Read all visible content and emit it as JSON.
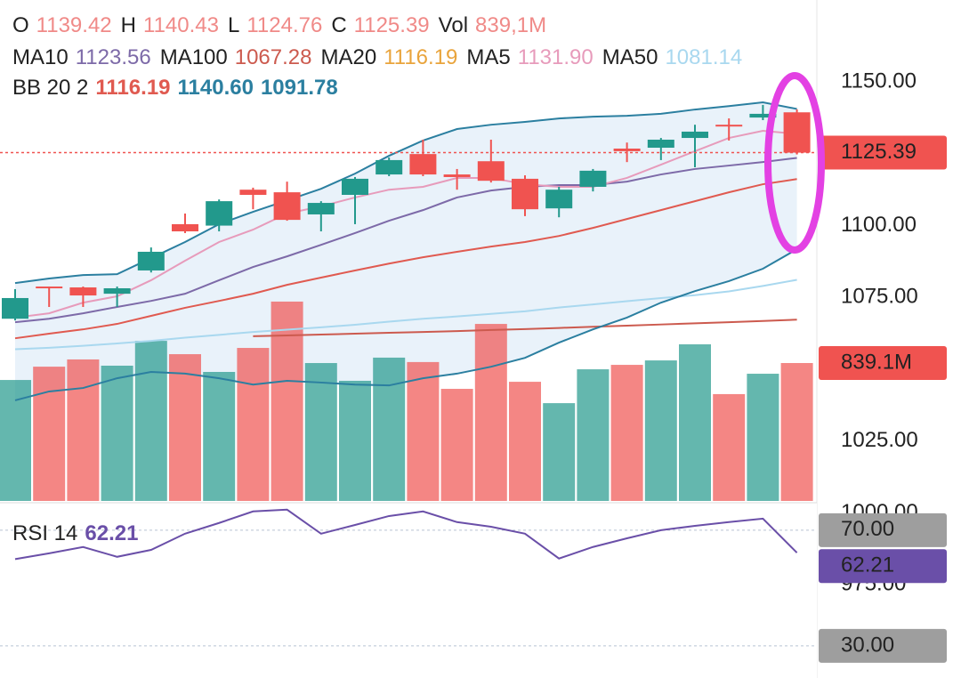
{
  "chart_data": {
    "type": "candlestick",
    "header_labels": [
      "O",
      "H",
      "L",
      "C",
      "Vol"
    ],
    "up_color": "#22998c",
    "down_color": "#f05350",
    "candles": {
      "open": [
        1067.6,
        1078.8,
        1078.5,
        1076.3,
        1084.4,
        1100.5,
        1100.0,
        1112.5,
        1111.6,
        1103.9,
        1110.7,
        1117.8,
        1124.9,
        1117.8,
        1122.4,
        1116.3,
        1106.0,
        1113.5,
        1126.8,
        1127.1,
        1130.5,
        1135.1,
        1137.6,
        1139.42
      ],
      "high": [
        1077.9,
        1078.8,
        1078.8,
        1078.8,
        1092.4,
        1104.2,
        1109.1,
        1113.2,
        1115.3,
        1108.5,
        1116.9,
        1123.7,
        1129.9,
        1119.7,
        1129.9,
        1117.5,
        1113.5,
        1119.7,
        1128.9,
        1130.5,
        1135.1,
        1137.3,
        1142.0,
        1140.43
      ],
      "low": [
        1067.0,
        1071.7,
        1071.7,
        1071.7,
        1083.7,
        1097.4,
        1098.0,
        1105.7,
        1101.7,
        1098.0,
        1100.5,
        1117.2,
        1117.2,
        1112.5,
        1115.0,
        1103.3,
        1102.9,
        1111.9,
        1122.1,
        1122.8,
        1120.3,
        1129.6,
        1136.7,
        1124.76
      ],
      "close": [
        1074.8,
        1078.2,
        1075.7,
        1078.2,
        1090.9,
        1098.0,
        1108.5,
        1110.7,
        1102.0,
        1107.9,
        1116.3,
        1122.8,
        1117.8,
        1116.9,
        1115.6,
        1105.7,
        1112.5,
        1119.1,
        1125.9,
        1129.9,
        1132.7,
        1134.5,
        1138.9,
        1125.39
      ]
    },
    "volume": {
      "values": [
        736,
        817,
        861,
        823,
        974,
        893,
        785,
        931,
        1213,
        839,
        731,
        872,
        845,
        682,
        1077,
        725,
        595,
        801,
        828,
        855,
        953,
        650,
        774,
        839.1
      ],
      "label": "839.1M",
      "header_label": "839,1M"
    },
    "volume_ylim": [
      0,
      3048
    ],
    "ylim": [
      942.6,
      1178.5
    ],
    "yticks": [
      {
        "value": 975,
        "label": "975.00"
      },
      {
        "value": 1000,
        "label": "1000.00"
      },
      {
        "value": 1025,
        "label": "1025.00"
      },
      {
        "value": 1075,
        "label": "1075.00"
      },
      {
        "value": 1100,
        "label": "1100.00"
      },
      {
        "value": 1150,
        "label": "1150.00"
      }
    ],
    "moving_averages": [
      {
        "name": "MA10",
        "color": "#7d6aa8",
        "label": "1123.56",
        "values": [
          1066.4,
          1067.6,
          1069.5,
          1071.7,
          1073.8,
          1076.3,
          1081.0,
          1085.6,
          1089.3,
          1093.3,
          1097.4,
          1101.7,
          1105.4,
          1109.8,
          1112.2,
          1113.5,
          1114.1,
          1114.1,
          1115.3,
          1117.8,
          1119.7,
          1120.9,
          1122.1,
          1123.56
        ]
      },
      {
        "name": "MA100",
        "color": "#cc5a4e",
        "label": "1067.28",
        "values": [
          null,
          null,
          null,
          null,
          null,
          null,
          null,
          1061.5,
          1061.8,
          1062.1,
          1062.4,
          1062.7,
          1063.0,
          1063.3,
          1063.7,
          1064.0,
          1064.4,
          1064.8,
          1065.2,
          1065.6,
          1066.0,
          1066.4,
          1066.8,
          1067.28
        ]
      },
      {
        "name": "MA20",
        "color": "#e9a43c",
        "label": "1116.19",
        "values": [
          1060.8,
          1062.4,
          1063.9,
          1065.8,
          1068.6,
          1071.4,
          1073.8,
          1076.3,
          1079.4,
          1081.9,
          1084.4,
          1086.8,
          1089.0,
          1090.9,
          1092.7,
          1094.3,
          1096.4,
          1099.2,
          1102.3,
          1105.4,
          1108.5,
          1111.6,
          1114.4,
          1116.19
        ]
      },
      {
        "name": "MA5",
        "color": "#e79bbb",
        "label": "1131.90",
        "values": [
          1068.0,
          1069.5,
          1073.2,
          1075.4,
          1081.0,
          1087.8,
          1094.3,
          1098.6,
          1104.2,
          1106.7,
          1109.8,
          1112.5,
          1113.5,
          1116.6,
          1116.6,
          1114.4,
          1113.5,
          1113.5,
          1116.6,
          1121.2,
          1125.9,
          1130.5,
          1133.0,
          1131.9
        ]
      },
      {
        "name": "MA50",
        "color": "#a9d8ef",
        "label": "1081.14",
        "values": [
          1057.0,
          1057.5,
          1058.2,
          1059.0,
          1059.9,
          1061.0,
          1062.0,
          1063.0,
          1063.8,
          1064.6,
          1065.5,
          1066.6,
          1067.6,
          1068.4,
          1069.3,
          1070.2,
          1071.5,
          1072.6,
          1073.7,
          1074.8,
          1075.8,
          1077.1,
          1079.0,
          1081.14
        ]
      }
    ],
    "bollinger": {
      "name": "BB 20 2",
      "color": "#2b7fa0",
      "basis_color": "#e05a50",
      "fill": "#e9f2fa",
      "labels": [
        "1116.19",
        "1140.60",
        "1091.78"
      ],
      "upper": [
        1080.0,
        1081.6,
        1082.8,
        1083.1,
        1088.7,
        1094.3,
        1100.5,
        1104.8,
        1108.8,
        1112.8,
        1118.1,
        1124.3,
        1129.6,
        1133.6,
        1135.1,
        1136.1,
        1137.3,
        1137.9,
        1138.2,
        1138.9,
        1140.4,
        1141.6,
        1142.9,
        1140.6
      ],
      "lower": [
        1039.2,
        1042.3,
        1043.5,
        1046.9,
        1049.1,
        1048.5,
        1046.9,
        1044.7,
        1046.0,
        1045.4,
        1044.7,
        1044.4,
        1046.9,
        1048.5,
        1050.9,
        1054.0,
        1059.3,
        1063.9,
        1068.0,
        1073.2,
        1077.2,
        1080.7,
        1085.0,
        1091.78
      ]
    },
    "rsi": {
      "name": "RSI 14",
      "color": "#6a4fa8",
      "label": "62.21",
      "ylim": [
        18.9,
        79.5
      ],
      "levels": [
        {
          "value": 70,
          "label": "70.00"
        },
        {
          "value": 30,
          "label": "30.00"
        }
      ],
      "values": [
        60.0,
        62.0,
        64.2,
        60.8,
        63.2,
        68.8,
        72.5,
        76.5,
        77.1,
        68.8,
        71.8,
        74.9,
        76.5,
        72.8,
        71.2,
        68.8,
        60.2,
        64.2,
        67.2,
        70.0,
        71.5,
        72.8,
        74.0,
        62.21
      ]
    }
  }
}
